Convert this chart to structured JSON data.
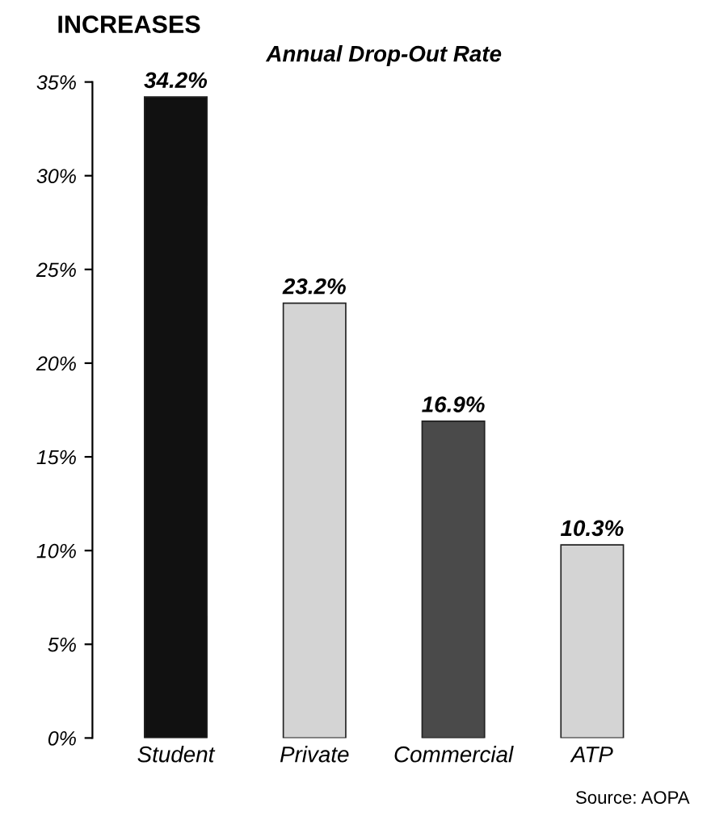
{
  "chart_data": {
    "type": "bar",
    "title": "INCREASES",
    "subtitle": "Annual Drop-Out Rate",
    "categories": [
      "Student",
      "Private",
      "Commercial",
      "ATP"
    ],
    "values": [
      34.2,
      23.2,
      16.9,
      10.3
    ],
    "colors": [
      "#111111",
      "#d4d4d4",
      "#4a4a4a",
      "#d4d4d4"
    ],
    "value_labels": [
      "34.2%",
      "23.2%",
      "16.9%",
      "10.3%"
    ],
    "ylim": [
      0,
      35
    ],
    "yticks": [
      {
        "value": 0,
        "label": "0%"
      },
      {
        "value": 5,
        "label": "5%"
      },
      {
        "value": 10,
        "label": "10%"
      },
      {
        "value": 15,
        "label": "15%"
      },
      {
        "value": 20,
        "label": "20%"
      },
      {
        "value": 25,
        "label": "25%"
      },
      {
        "value": 30,
        "label": "30%"
      },
      {
        "value": 35,
        "label": "35%"
      }
    ],
    "grid": false,
    "legend": false,
    "annotations": [
      "Source: AOPA"
    ]
  }
}
